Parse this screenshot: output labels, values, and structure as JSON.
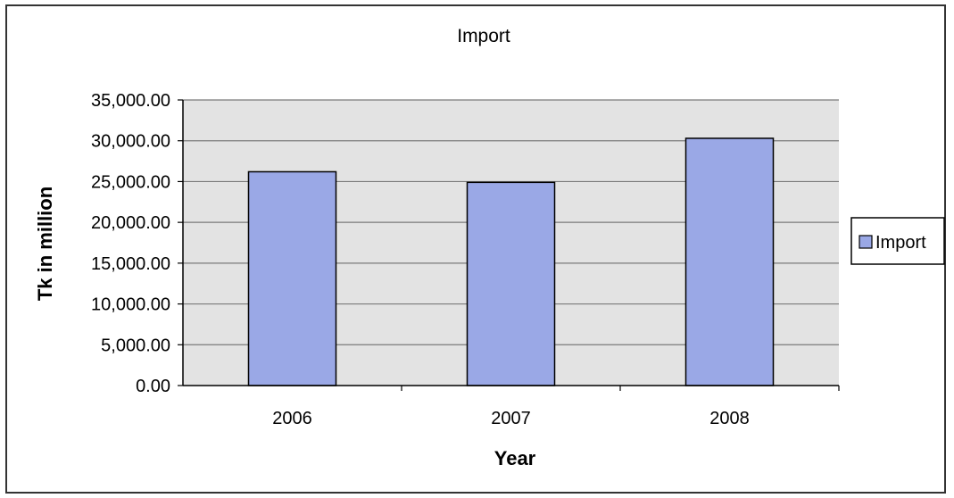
{
  "chart_data": {
    "type": "bar",
    "title": "Import",
    "xlabel": "Year",
    "ylabel": "Tk in million",
    "categories": [
      "2006",
      "2007",
      "2008"
    ],
    "series": [
      {
        "name": "Import",
        "values": [
          26200,
          24900,
          30300
        ]
      }
    ],
    "ylim": [
      0,
      35000
    ],
    "yticks": [
      "0.00",
      "5,000.00",
      "10,000.00",
      "15,000.00",
      "20,000.00",
      "25,000.00",
      "30,000.00",
      "35,000.00"
    ],
    "grid": true,
    "legend_position": "right",
    "colors": {
      "bar_fill": "#9aa8e6",
      "bar_stroke": "#000000",
      "plot_background": "#e3e3e3",
      "gridline": "#7a7a7a"
    }
  }
}
